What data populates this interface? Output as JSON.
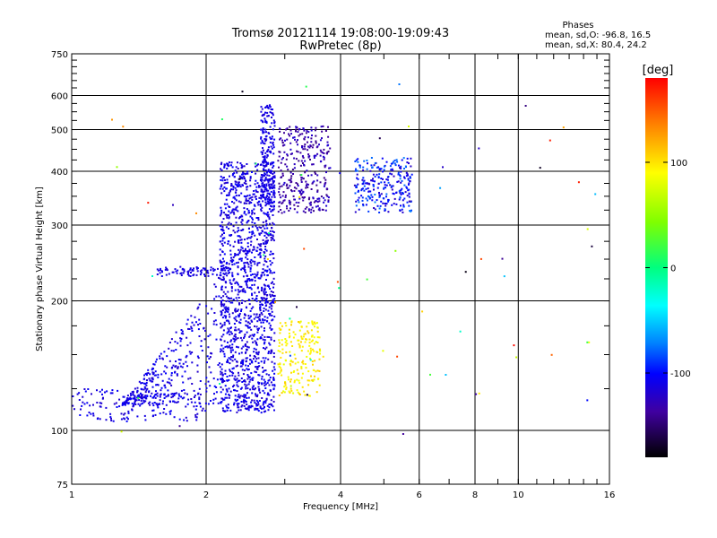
{
  "chart_data": {
    "type": "scatter",
    "title": "Tromsø 20121114 19:08:00-19:09:43",
    "subtitle": "RwPretec (8p)",
    "header": {
      "title": "Phases",
      "line1": "mean, sd,O: -96.8, 16.5",
      "line2": "mean, sd,X:  80.4, 24.2"
    },
    "xlabel": "Frequency [MHz]",
    "ylabel": "Stationary phase Virtual Height [km]",
    "x_scale": "log",
    "y_scale": "log",
    "xlim": [
      1,
      16
    ],
    "ylim": [
      75,
      750
    ],
    "x_ticks": [
      1,
      2,
      4,
      6,
      8,
      10,
      16
    ],
    "x_tick_labels": [
      "1",
      "2",
      "4",
      "6",
      "8",
      "10",
      "16"
    ],
    "y_ticks": [
      75,
      100,
      200,
      300,
      400,
      500,
      600,
      750
    ],
    "y_tick_labels": [
      "75",
      "100",
      "200",
      "300",
      "400",
      "500",
      "600",
      "750"
    ],
    "grid": true,
    "colorbar": {
      "label": "[deg]",
      "range": [
        -180,
        180
      ],
      "ticks": [
        100,
        0,
        -100
      ],
      "tick_labels": [
        "100",
        "0",
        "-100"
      ]
    },
    "clusters": [
      {
        "desc": "low E trace",
        "x": [
          1.0,
          2.0
        ],
        "y": [
          105,
          125
        ],
        "phase": [
          -115,
          -95
        ],
        "n": 160
      },
      {
        "desc": "E ramp",
        "x": [
          1.3,
          2.2
        ],
        "y": [
          115,
          240
        ],
        "phase": [
          -115,
          -95
        ],
        "n": 360
      },
      {
        "desc": "Es band",
        "x": [
          1.55,
          2.3
        ],
        "y": [
          228,
          240
        ],
        "phase": [
          -110,
          -100
        ],
        "n": 90
      },
      {
        "desc": "F column",
        "x": [
          2.15,
          2.85
        ],
        "y": [
          110,
          420
        ],
        "phase": [
          -115,
          -95
        ],
        "n": 1400
      },
      {
        "desc": "F column top",
        "x": [
          2.65,
          2.85
        ],
        "y": [
          330,
          570
        ],
        "phase": [
          -110,
          -100
        ],
        "n": 220
      },
      {
        "desc": "F2 O trace",
        "x": [
          2.9,
          3.8
        ],
        "y": [
          320,
          510
        ],
        "phase": [
          -140,
          -110
        ],
        "n": 320
      },
      {
        "desc": "F2 X trace",
        "x": [
          4.3,
          5.8
        ],
        "y": [
          320,
          430
        ],
        "phase": [
          -120,
          -60
        ],
        "n": 260
      },
      {
        "desc": "X low cluster",
        "x": [
          2.9,
          3.6
        ],
        "y": [
          120,
          180
        ],
        "phase": [
          80,
          110
        ],
        "n": 200
      },
      {
        "desc": "sparse noise",
        "x": [
          1.2,
          15
        ],
        "y": [
          95,
          640
        ],
        "phase": [
          -180,
          180
        ],
        "n": 70
      }
    ]
  }
}
